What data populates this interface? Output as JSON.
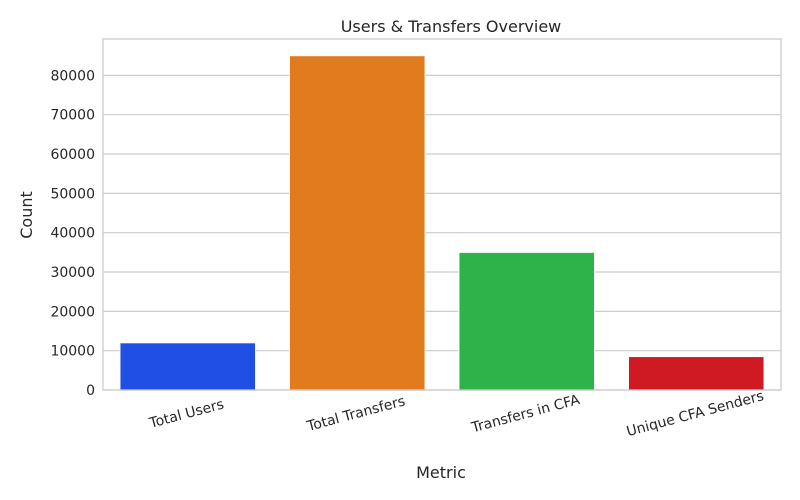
{
  "chart_data": {
    "type": "bar",
    "title": "Users & Transfers Overview",
    "xlabel": "Metric",
    "ylabel": "Count",
    "categories": [
      "Total Users",
      "Total Transfers",
      "Transfers in CFA",
      "Unique CFA Senders"
    ],
    "values": [
      12000,
      85000,
      35000,
      8500
    ],
    "colors": [
      "#1f4fe5",
      "#e07b1e",
      "#2eb34a",
      "#cf1a24"
    ],
    "ylim": [
      0,
      89250
    ],
    "yticks": [
      0,
      10000,
      20000,
      30000,
      40000,
      50000,
      60000,
      70000,
      80000
    ],
    "ytick_labels": [
      "0",
      "10000",
      "20000",
      "30000",
      "40000",
      "50000",
      "60000",
      "70000",
      "80000"
    ],
    "grid": true,
    "grid_color": "#cccccc",
    "spine_color": "#cccccc"
  }
}
